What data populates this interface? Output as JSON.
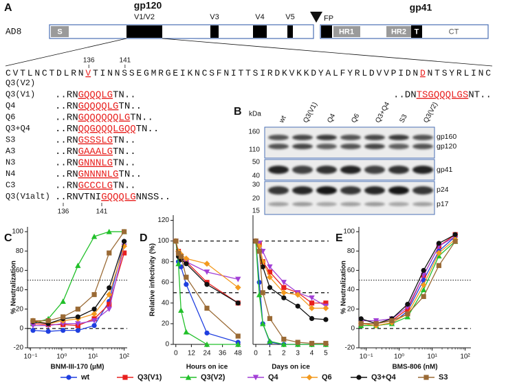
{
  "panel_a": {
    "label": "A",
    "construct": "AD8",
    "gp120": "gp120",
    "gp41": "gp41",
    "regions": [
      "V1/V2",
      "V3",
      "V4",
      "V5",
      "FP"
    ],
    "domains": [
      "S",
      "HR1",
      "HR2",
      "T",
      "CT"
    ],
    "sequence": [
      "CVTLNCTDLRN",
      "V",
      "TINNSSEGMRGEIKNCSFNITTSIRDKVKKDYALFYRLDVVPIDN",
      "D",
      "NTSYRLINC"
    ],
    "positions": [
      136,
      141
    ],
    "mutants": [
      {
        "name": "Q3(V2)",
        "sequence": [
          "..DN",
          "TSGQQQLGS",
          "NT.."
        ]
      },
      {
        "name": "Q3(V1)",
        "sequence": [
          "..RN",
          "GQQQLG",
          "TN.."
        ]
      },
      {
        "name": "Q4",
        "sequence": [
          "..RN",
          "GQQQQLG",
          "TN.."
        ]
      },
      {
        "name": "Q6",
        "sequence": [
          "..RN",
          "GQQQQQQLG",
          "TN.."
        ]
      },
      {
        "name": "Q3+Q4",
        "sequence": [
          "..RN",
          "QQGQQQLGQQ",
          "TN.."
        ]
      },
      {
        "name": "S3",
        "sequence": [
          "..RN",
          "GSSSLG",
          "TN.."
        ]
      },
      {
        "name": "A3",
        "sequence": [
          "..RN",
          "GAAALG",
          "TN.."
        ]
      },
      {
        "name": "N3",
        "sequence": [
          "..RN",
          "GNNNLG",
          "TN.."
        ]
      },
      {
        "name": "N4",
        "sequence": [
          "..RN",
          "GNNNNLG",
          "TN.."
        ]
      },
      {
        "name": "C3",
        "sequence": [
          "..RN",
          "GCCCLG",
          "TN.."
        ]
      },
      {
        "name": "Q3(V1alt)",
        "sequence": [
          "..RNVTNI",
          "GQQQLG",
          "NNSS.."
        ]
      }
    ]
  },
  "panel_b": {
    "label": "B",
    "unit": "kDa",
    "lanes": [
      "wt",
      "Q3(V1)",
      "Q4",
      "Q6",
      "Q3+Q4",
      "S3",
      "Q3(V2)"
    ],
    "markers": [
      160,
      110,
      50,
      40,
      30,
      20,
      15
    ],
    "bands": [
      "gp160",
      "gp120",
      "gp41",
      "p24",
      "p17"
    ]
  },
  "chart_data": [
    {
      "type": "line",
      "panel": "C",
      "x_label": "BNM-III-170 (µM)",
      "y_label": "% Neutralization",
      "xscale": "log",
      "xlim": [
        0.08,
        125
      ],
      "xticks": [
        {
          "value": 0.1,
          "label": "10⁻¹"
        },
        {
          "value": 1,
          "label": "10⁰"
        },
        {
          "value": 10,
          "label": "10¹"
        },
        {
          "value": 100,
          "label": "10²"
        }
      ],
      "ylim": [
        -20,
        105
      ],
      "yticks": [
        -20,
        0,
        20,
        40,
        60,
        80,
        100
      ],
      "reference_lines": [
        {
          "value": 0,
          "style": "dashed"
        },
        {
          "value": 50,
          "style": "dotted"
        }
      ],
      "x": [
        0.12,
        0.37,
        1.1,
        3.3,
        11,
        33,
        100
      ],
      "series": [
        {
          "name": "wt",
          "color": "#1f3fe0",
          "marker": "circle",
          "values": [
            -2,
            -3,
            -2,
            -2,
            3,
            28,
            90
          ]
        },
        {
          "name": "Q3(V1)",
          "color": "#e8201e",
          "marker": "square",
          "values": [
            5,
            4,
            4,
            3,
            10,
            25,
            78
          ]
        },
        {
          "name": "Q3(V2)",
          "color": "#22c02a",
          "marker": "triangle-up",
          "values": [
            5,
            10,
            28,
            65,
            95,
            100,
            100
          ]
        },
        {
          "name": "Q4",
          "color": "#a23fd6",
          "marker": "triangle-down",
          "values": [
            3,
            3,
            5,
            5,
            8,
            20,
            85
          ]
        },
        {
          "name": "Q6",
          "color": "#f39a1f",
          "marker": "diamond",
          "values": [
            8,
            5,
            8,
            10,
            15,
            35,
            85
          ]
        },
        {
          "name": "Q3+Q4",
          "color": "#111111",
          "marker": "circle",
          "values": [
            7,
            5,
            10,
            12,
            20,
            42,
            90
          ]
        },
        {
          "name": "S3",
          "color": "#9a6a35",
          "marker": "square",
          "values": [
            8,
            8,
            12,
            20,
            35,
            78,
            100
          ]
        }
      ]
    },
    {
      "type": "line",
      "panel": "D",
      "x_label": "Hours on ice",
      "y_label": "Relative infectivity (%)",
      "xlim": [
        -2,
        50
      ],
      "xticks": [
        0,
        12,
        24,
        36,
        48
      ],
      "ylim": [
        0,
        125
      ],
      "yticks": [
        0,
        20,
        40,
        60,
        80,
        100,
        120
      ],
      "reference_lines": [
        {
          "value": 100,
          "style": "dashed"
        },
        {
          "value": 50,
          "style": "dashed"
        }
      ],
      "x": [
        0,
        2,
        4,
        8,
        24,
        48
      ],
      "series": [
        {
          "name": "wt",
          "color": "#1f3fe0",
          "marker": "circle",
          "values": [
            100,
            80,
            75,
            58,
            11,
            2
          ]
        },
        {
          "name": "Q3(V1)",
          "color": "#e8201e",
          "marker": "square",
          "values": [
            100,
            90,
            85,
            80,
            60,
            40
          ]
        },
        {
          "name": "Q3(V2)",
          "color": "#22c02a",
          "marker": "triangle-up",
          "values": [
            100,
            78,
            33,
            12,
            0,
            0
          ]
        },
        {
          "name": "Q4",
          "color": "#a23fd6",
          "marker": "triangle-down",
          "values": [
            100,
            88,
            85,
            80,
            70,
            63
          ]
        },
        {
          "name": "Q6",
          "color": "#f39a1f",
          "marker": "diamond",
          "values": [
            100,
            90,
            87,
            83,
            78,
            55
          ]
        },
        {
          "name": "Q3+Q4",
          "color": "#111111",
          "marker": "circle",
          "values": [
            100,
            85,
            82,
            78,
            58,
            40
          ]
        },
        {
          "name": "S3",
          "color": "#9a6a35",
          "marker": "square",
          "values": [
            100,
            88,
            85,
            65,
            35,
            8
          ]
        }
      ]
    },
    {
      "type": "line",
      "x_label": "Days on ice",
      "xlim": [
        -0.2,
        5.2
      ],
      "xticks": [
        0,
        1,
        2,
        3,
        4,
        5
      ],
      "ylim": [
        0,
        125
      ],
      "reference_lines": [
        {
          "value": 100,
          "style": "dashed"
        },
        {
          "value": 50,
          "style": "dashed"
        }
      ],
      "x": [
        0,
        0.25,
        0.5,
        1,
        2,
        3,
        4,
        5
      ],
      "series": [
        {
          "name": "wt",
          "color": "#1f3fe0",
          "marker": "circle",
          "values": [
            100,
            60,
            20,
            2,
            0,
            0,
            0,
            0
          ]
        },
        {
          "name": "Q3(V1)",
          "color": "#e8201e",
          "marker": "square",
          "values": [
            100,
            97,
            80,
            70,
            55,
            50,
            40,
            40
          ]
        },
        {
          "name": "Q3(V2)",
          "color": "#22c02a",
          "marker": "triangle-up",
          "values": [
            100,
            48,
            20,
            3,
            0,
            0,
            0,
            0
          ]
        },
        {
          "name": "Q4",
          "color": "#a23fd6",
          "marker": "triangle-down",
          "values": [
            100,
            98,
            90,
            75,
            60,
            50,
            45,
            37
          ]
        },
        {
          "name": "Q6",
          "color": "#f39a1f",
          "marker": "diamond",
          "values": [
            100,
            95,
            80,
            65,
            50,
            48,
            35,
            35
          ]
        },
        {
          "name": "Q3+Q4",
          "color": "#111111",
          "marker": "circle",
          "values": [
            100,
            90,
            75,
            55,
            45,
            37,
            25,
            24
          ]
        },
        {
          "name": "S3",
          "color": "#9a6a35",
          "marker": "square",
          "values": [
            100,
            90,
            50,
            25,
            5,
            2,
            1,
            1
          ]
        }
      ]
    },
    {
      "type": "line",
      "panel": "E",
      "x_label": "BMS-806 (nM)",
      "y_label": "% Neutralization",
      "xscale": "log",
      "xlim": [
        0.06,
        150
      ],
      "xticks": [
        {
          "value": 0.1,
          "label": "10⁻¹"
        },
        {
          "value": 1,
          "label": "10⁰"
        },
        {
          "value": 10,
          "label": "10¹"
        },
        {
          "value": 100,
          "label": "10²"
        }
      ],
      "ylim": [
        -20,
        105
      ],
      "yticks": [
        -20,
        0,
        20,
        40,
        60,
        80,
        100
      ],
      "reference_lines": [
        {
          "value": 0,
          "style": "dashed"
        },
        {
          "value": 50,
          "style": "dotted"
        }
      ],
      "x": [
        0.07,
        0.2,
        0.6,
        1.8,
        5.5,
        16,
        50
      ],
      "series": [
        {
          "name": "wt",
          "color": "#1f3fe0",
          "marker": "circle",
          "values": [
            5,
            3,
            5,
            18,
            50,
            80,
            95
          ]
        },
        {
          "name": "Q3(V1)",
          "color": "#e8201e",
          "marker": "square",
          "values": [
            5,
            5,
            8,
            20,
            55,
            85,
            97
          ]
        },
        {
          "name": "Q3(V2)",
          "color": "#22c02a",
          "marker": "triangle-up",
          "values": [
            3,
            3,
            5,
            12,
            40,
            75,
            90
          ]
        },
        {
          "name": "Q4",
          "color": "#a23fd6",
          "marker": "triangle-down",
          "values": [
            8,
            8,
            10,
            22,
            55,
            85,
            95
          ]
        },
        {
          "name": "Q6",
          "color": "#f39a1f",
          "marker": "diamond",
          "values": [
            5,
            3,
            6,
            15,
            45,
            78,
            92
          ]
        },
        {
          "name": "Q3+Q4",
          "color": "#111111",
          "marker": "circle",
          "values": [
            10,
            5,
            10,
            25,
            60,
            88,
            97
          ]
        },
        {
          "name": "S3",
          "color": "#9a6a35",
          "marker": "square",
          "values": [
            5,
            5,
            8,
            15,
            33,
            65,
            90
          ]
        }
      ]
    }
  ]
}
